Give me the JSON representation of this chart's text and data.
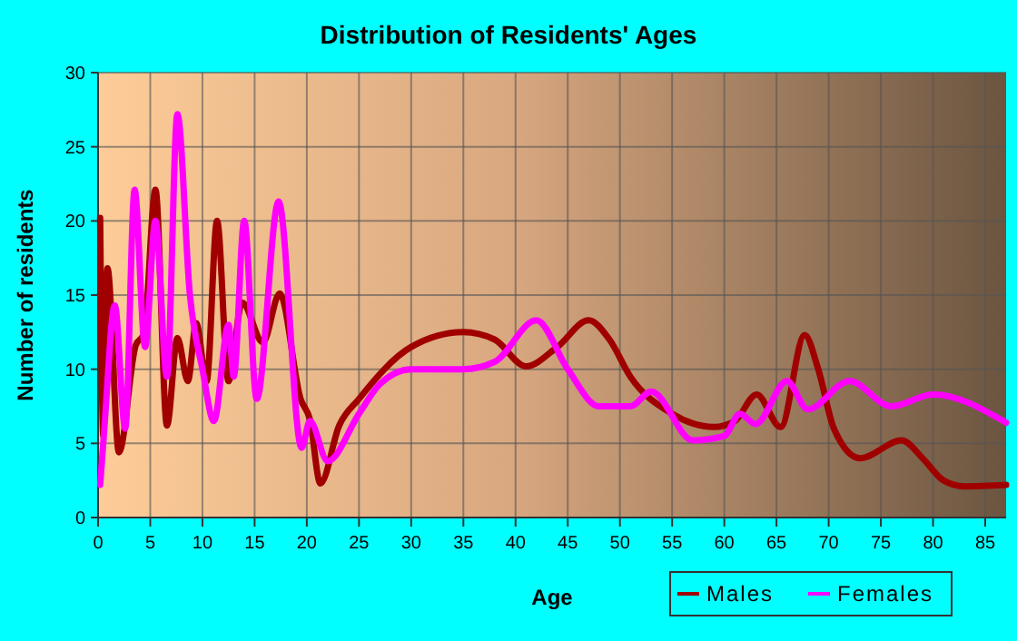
{
  "chart_data": {
    "type": "line",
    "title": "Distribution of Residents' Ages",
    "xlabel": "Age",
    "ylabel": "Number of residents",
    "xlim": [
      0,
      87
    ],
    "xticks": [
      0,
      5,
      10,
      15,
      20,
      25,
      30,
      35,
      40,
      45,
      50,
      55,
      60,
      65,
      70,
      75,
      80,
      85
    ],
    "ylim": [
      0,
      30
    ],
    "yticks": [
      0,
      5,
      10,
      15,
      20,
      25,
      30
    ],
    "grid": true,
    "legend": "bottom right",
    "line_style": "solid",
    "series": [
      {
        "name": "Males",
        "color": "#a00000",
        "x": [
          0.2,
          0.5,
          0.9,
          2,
          3.6,
          4.4,
          5.5,
          6.6,
          7.6,
          8.6,
          9.4,
          10.4,
          11.4,
          12.5,
          13.8,
          15.8,
          17.4,
          19.4,
          20.3,
          21.3,
          23.1,
          25,
          30,
          35,
          38,
          41,
          44,
          47,
          49,
          51,
          55,
          59,
          61,
          63.1,
          65.4,
          67.7,
          69,
          70.5,
          73,
          77,
          79,
          81,
          83,
          87
        ],
        "values": [
          20.2,
          5.5,
          16.8,
          4.4,
          11.6,
          12.4,
          22.1,
          6.2,
          12.1,
          9.2,
          13.1,
          9.2,
          20,
          9.2,
          14.5,
          11.8,
          15.1,
          8,
          6.6,
          2.3,
          6.2,
          8,
          11.5,
          12.5,
          12,
          10.2,
          11.5,
          13.3,
          12,
          9.5,
          7,
          6.1,
          6.5,
          8.3,
          6.1,
          12.3,
          10,
          6,
          4,
          5.2,
          4,
          2.5,
          2.1,
          2.2
        ]
      },
      {
        "name": "Females",
        "color": "#ff00ff",
        "x": [
          0.2,
          0.6,
          1.6,
          2.6,
          3.5,
          4.5,
          5.5,
          6.6,
          7.6,
          8.8,
          10,
          11.1,
          12.5,
          13,
          14,
          15.2,
          17.3,
          19.5,
          20.3,
          22,
          25,
          27,
          30,
          35,
          38,
          42,
          45,
          48,
          51,
          53,
          57,
          60,
          61.5,
          63,
          66,
          68,
          72,
          76,
          80,
          87
        ],
        "values": [
          2.2,
          6,
          14.3,
          6,
          22.1,
          11.5,
          20,
          9.5,
          27.2,
          15,
          10,
          6.5,
          13,
          9.5,
          20,
          8,
          21.3,
          4.7,
          6.5,
          3.8,
          7,
          9,
          10,
          10,
          10.5,
          13.3,
          10,
          7.5,
          7.5,
          8.5,
          5.2,
          5.5,
          7,
          6.3,
          9.2,
          7.3,
          9.2,
          7.5,
          8.3,
          6.4
        ]
      }
    ]
  }
}
